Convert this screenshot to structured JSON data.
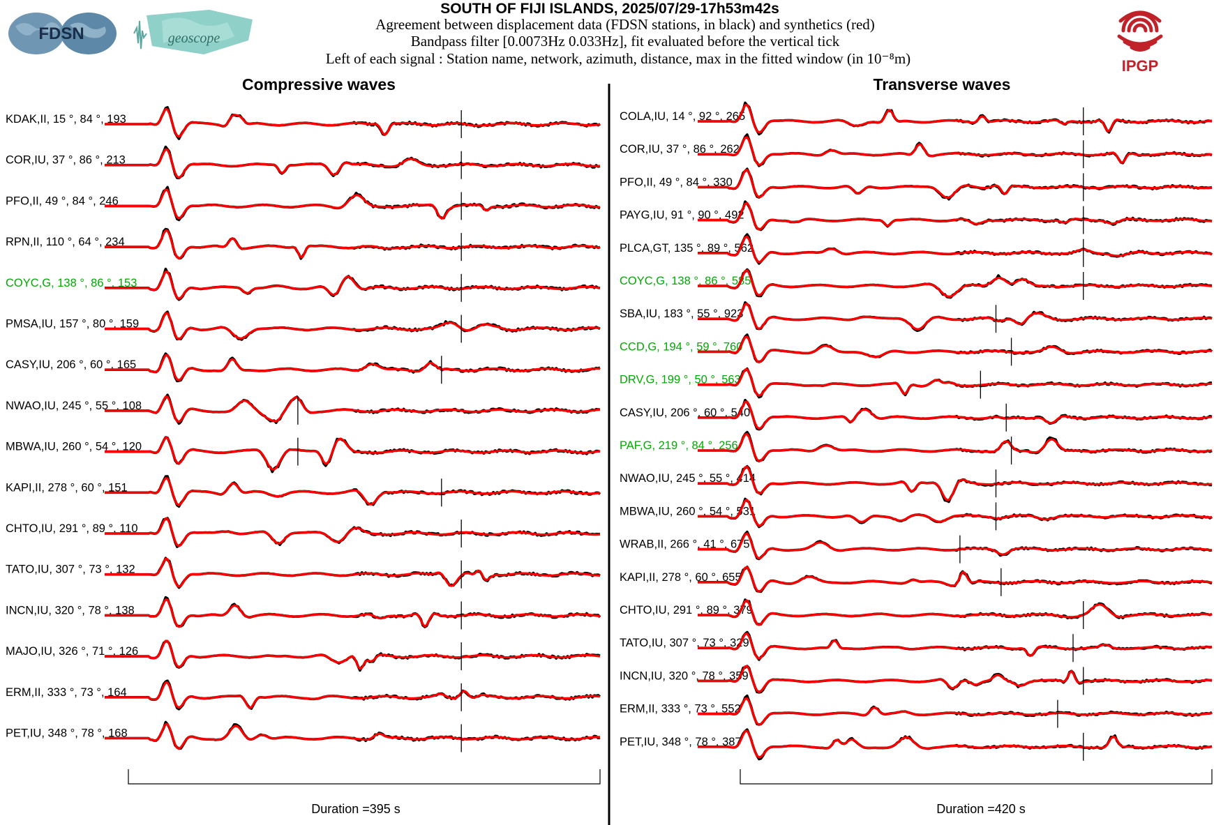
{
  "header": {
    "title": "SOUTH OF FIJI ISLANDS, 2025/07/29-17h53m42s",
    "line1": "Agreement between displacement data (FDSN stations, in black) and synthetics (red)",
    "line2": "Bandpass filter [0.0073Hz 0.033Hz], fit evaluated before the vertical tick",
    "line3": "Left of each signal : Station name, network, azimuth, distance, max in the fitted window (in 10⁻⁸m)"
  },
  "logos": {
    "fdsn": "FDSN",
    "geoscope": "geoscope",
    "ipgp": "IPGP"
  },
  "colors": {
    "data": "#000000",
    "synthetic": "#ff0000",
    "highlight": "#00aa00",
    "ipgp": "#c0222a",
    "globe": "#5e88a8",
    "geoscope": "#7fc8c0"
  },
  "chart_data": [
    {
      "type": "line",
      "title": "Compressive waves",
      "xlabel": "Duration =395 s",
      "series": [
        "data",
        "synthetics"
      ],
      "stations": [
        {
          "label": "KDAK,II, 15 °, 84 °, 193",
          "highlight": false,
          "tick": 0.72
        },
        {
          "label": "COR,IU, 37 °, 86 °, 213",
          "highlight": false,
          "tick": 0.72
        },
        {
          "label": "PFO,II, 49 °, 84 °, 246",
          "highlight": false,
          "tick": 0.72
        },
        {
          "label": "RPN,II, 110 °, 64 °, 234",
          "highlight": false,
          "tick": 0.72
        },
        {
          "label": "COYC,G, 138 °, 86 °, 153",
          "highlight": true,
          "tick": 0.72
        },
        {
          "label": "PMSA,IU, 157 °, 80 °, 159",
          "highlight": false,
          "tick": 0.72
        },
        {
          "label": "CASY,IU, 206 °, 60 °, 165",
          "highlight": false,
          "tick": 0.68
        },
        {
          "label": "NWAO,IU, 245 °, 55 °, 108",
          "highlight": false,
          "tick": 0.39
        },
        {
          "label": "MBWA,IU, 260 °, 54 °, 120",
          "highlight": false,
          "tick": 0.39
        },
        {
          "label": "KAPI,II, 278 °, 60 °, 151",
          "highlight": false,
          "tick": 0.68
        },
        {
          "label": "CHTO,IU, 291 °, 89 °, 110",
          "highlight": false,
          "tick": 0.72
        },
        {
          "label": "TATO,IU, 307 °, 73 °, 132",
          "highlight": false,
          "tick": 0.72
        },
        {
          "label": "INCN,IU, 320 °, 78 °, 138",
          "highlight": false,
          "tick": 0.72
        },
        {
          "label": "MAJO,IU, 326 °, 71 °, 126",
          "highlight": false,
          "tick": 0.72
        },
        {
          "label": "ERM,II, 333 °, 73 °, 164",
          "highlight": false,
          "tick": 0.72
        },
        {
          "label": "PET,IU, 348 °, 78 °, 168",
          "highlight": false,
          "tick": 0.72
        }
      ]
    },
    {
      "type": "line",
      "title": "Transverse waves",
      "xlabel": "Duration =420 s",
      "series": [
        "data",
        "synthetics"
      ],
      "stations": [
        {
          "label": "COLA,IU, 14 °, 92 °, 265",
          "highlight": false,
          "tick": 0.75
        },
        {
          "label": "COR,IU, 37 °, 86 °, 262",
          "highlight": false,
          "tick": 0.75
        },
        {
          "label": "PFO,II, 49 °, 84 °, 330",
          "highlight": false,
          "tick": 0.75
        },
        {
          "label": "PAYG,IU, 91 °, 90 °, 492",
          "highlight": false,
          "tick": 0.75
        },
        {
          "label": "PLCA,GT, 135 °, 89 °, 562",
          "highlight": false,
          "tick": 0.75
        },
        {
          "label": "COYC,G, 138 °, 86 °, 585",
          "highlight": true,
          "tick": 0.75
        },
        {
          "label": "SBA,IU, 183 °, 55 °, 923",
          "highlight": false,
          "tick": 0.58
        },
        {
          "label": "CCD,G, 194 °, 59 °, 760",
          "highlight": true,
          "tick": 0.61
        },
        {
          "label": "DRV,G, 199 °, 50 °, 563",
          "highlight": true,
          "tick": 0.55
        },
        {
          "label": "CASY,IU, 206 °, 60 °, 540",
          "highlight": false,
          "tick": 0.6
        },
        {
          "label": "PAF,G, 219 °, 84 °, 256",
          "highlight": true,
          "tick": 0.61
        },
        {
          "label": "NWAO,IU, 245 °, 55 °, 414",
          "highlight": false,
          "tick": 0.58
        },
        {
          "label": "MBWA,IU, 260 °, 54 °, 531",
          "highlight": false,
          "tick": 0.58
        },
        {
          "label": "WRAB,II, 266 °, 41 °, 675",
          "highlight": false,
          "tick": 0.51
        },
        {
          "label": "KAPI,II, 278 °, 60 °, 655",
          "highlight": false,
          "tick": 0.59
        },
        {
          "label": "CHTO,IU, 291 °, 89 °, 379",
          "highlight": false,
          "tick": 0.75
        },
        {
          "label": "TATO,IU, 307 °, 73 °, 329",
          "highlight": false,
          "tick": 0.73
        },
        {
          "label": "INCN,IU, 320 °, 78 °, 359",
          "highlight": false,
          "tick": 0.75
        },
        {
          "label": "ERM,II, 333 °, 73 °, 552",
          "highlight": false,
          "tick": 0.7
        },
        {
          "label": "PET,IU, 348 °, 78 °, 387",
          "highlight": false,
          "tick": 0.75
        }
      ]
    }
  ]
}
